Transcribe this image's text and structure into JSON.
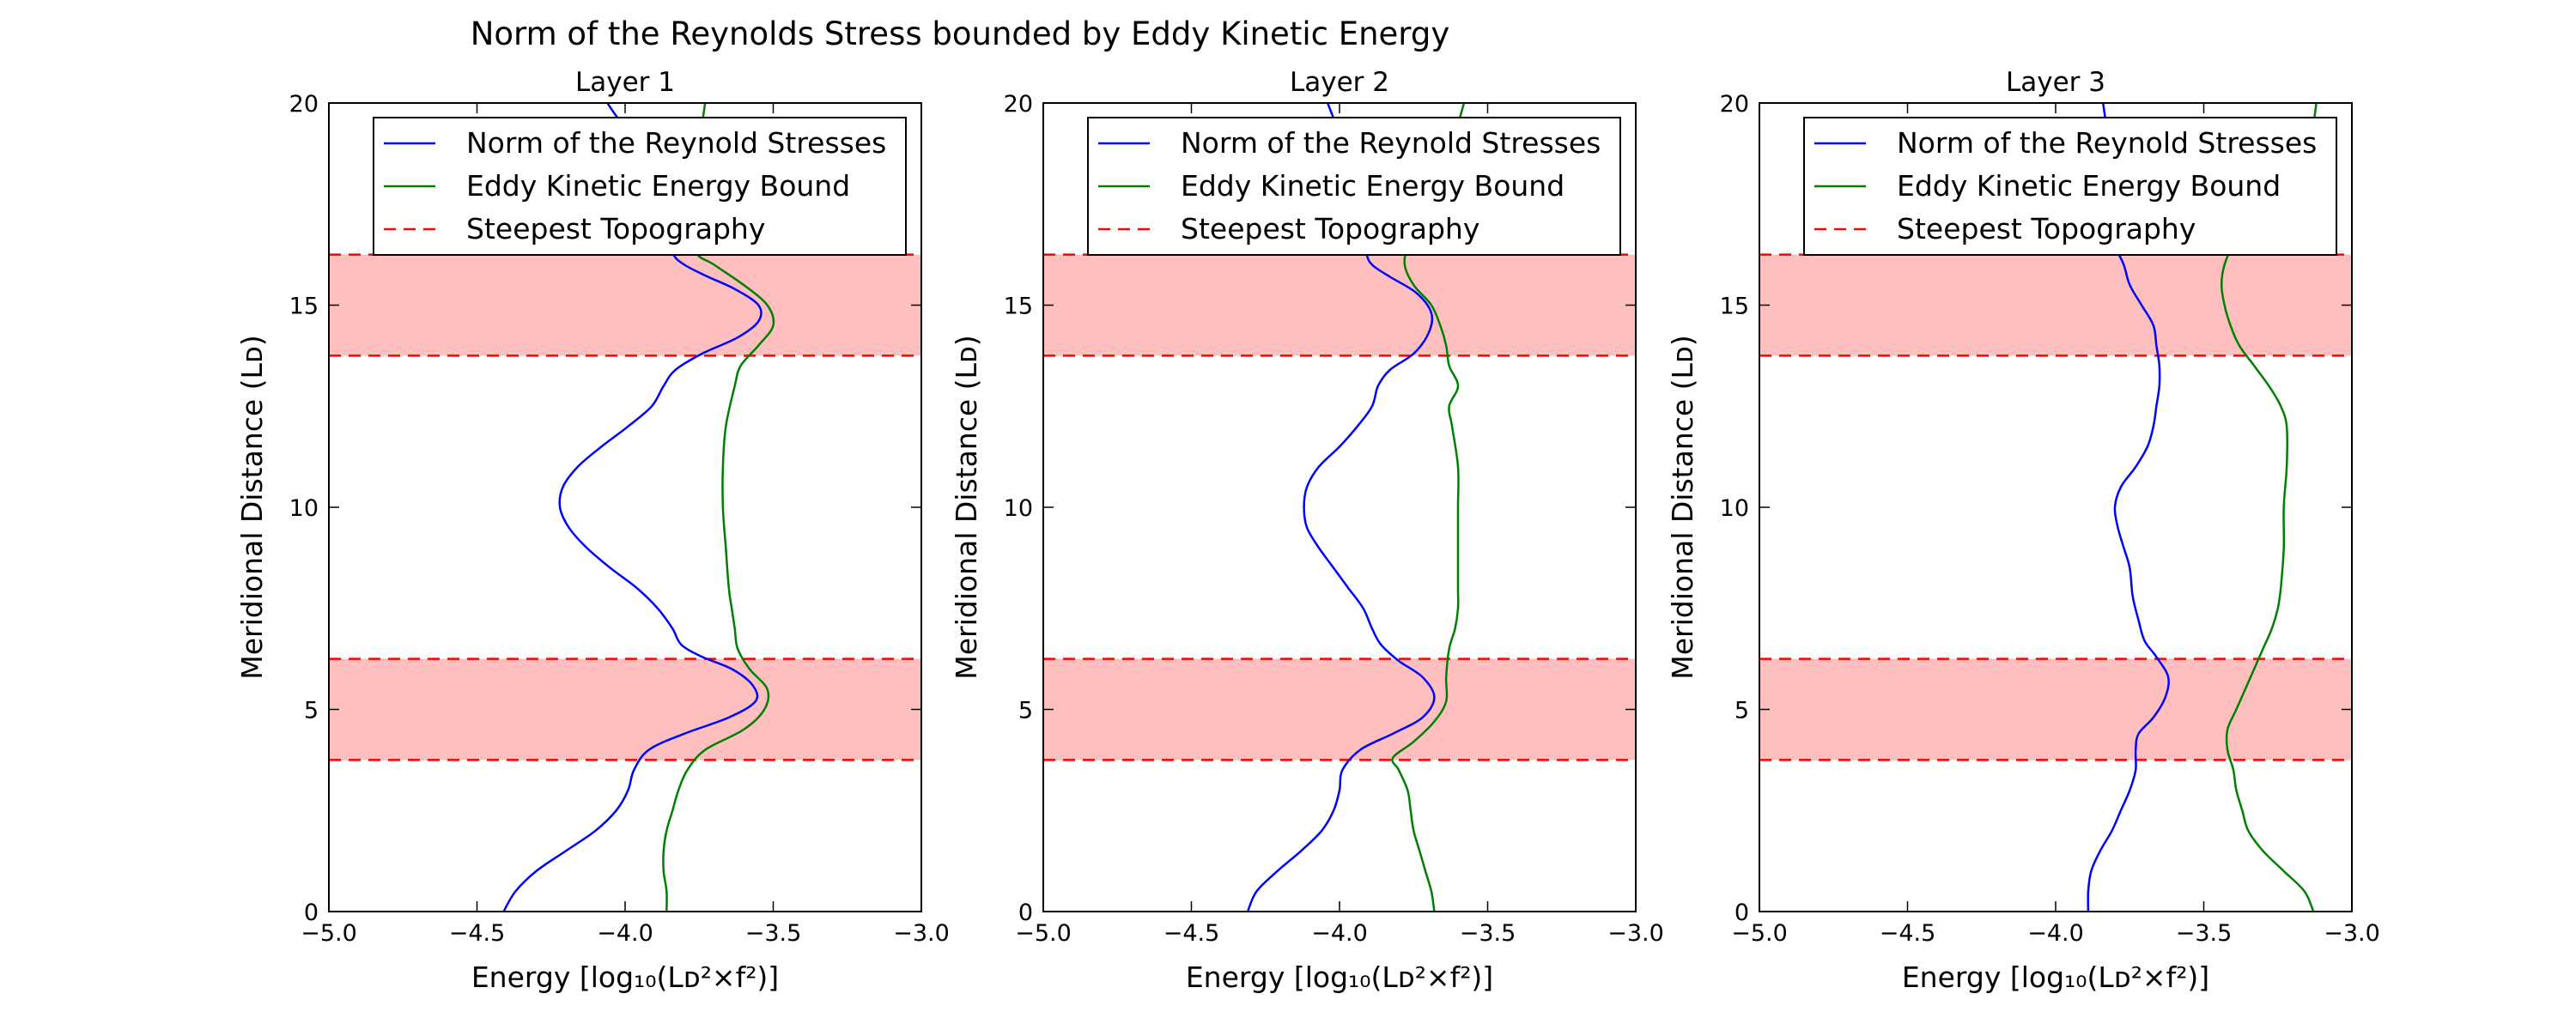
{
  "suptitle": "Norm of the Reynolds Stress bounded by Eddy Kinetic Energy",
  "colors": {
    "reynolds": "#0000ff",
    "eke": "#008000",
    "topo_line": "#ff0000",
    "topo_band": "#ffbfbf"
  },
  "chart_data": [
    {
      "type": "line",
      "title": "Layer 1",
      "xlabel": "Energy [log₁₀(Lᴅ²×f²)]",
      "ylabel": "Meridional Distance (Lᴅ)",
      "xlim": [
        -5.0,
        -3.0
      ],
      "ylim": [
        0,
        20
      ],
      "xticks": [
        -5.0,
        -4.5,
        -4.0,
        -3.5,
        -3.0
      ],
      "xtick_labels": [
        "−5.0",
        "−4.5",
        "−4.0",
        "−3.5",
        "−3.0"
      ],
      "yticks": [
        0,
        5,
        10,
        15,
        20
      ],
      "ytick_labels": [
        "0",
        "5",
        "10",
        "15",
        "20"
      ],
      "legend": {
        "position": "top-right",
        "entries": [
          "Norm of the Reynold Stresses",
          "Eddy Kinetic Energy Bound",
          "Steepest Topography"
        ]
      },
      "bands": [
        [
          3.75,
          6.25
        ],
        [
          13.75,
          16.25
        ]
      ],
      "series": [
        {
          "name": "Norm of the Reynold Stresses",
          "points": [
            [
              -4.41,
              0
            ],
            [
              -4.37,
              0.5
            ],
            [
              -4.3,
              1
            ],
            [
              -4.2,
              1.5
            ],
            [
              -4.1,
              2
            ],
            [
              -4.03,
              2.5
            ],
            [
              -3.99,
              3
            ],
            [
              -3.97,
              3.5
            ],
            [
              -3.92,
              4
            ],
            [
              -3.8,
              4.4
            ],
            [
              -3.65,
              4.8
            ],
            [
              -3.56,
              5.2
            ],
            [
              -3.57,
              5.6
            ],
            [
              -3.64,
              6
            ],
            [
              -3.74,
              6.3
            ],
            [
              -3.81,
              6.6
            ],
            [
              -3.84,
              7
            ],
            [
              -3.89,
              7.5
            ],
            [
              -3.96,
              8
            ],
            [
              -4.05,
              8.5
            ],
            [
              -4.13,
              9
            ],
            [
              -4.19,
              9.5
            ],
            [
              -4.22,
              10
            ],
            [
              -4.21,
              10.5
            ],
            [
              -4.16,
              11
            ],
            [
              -4.08,
              11.5
            ],
            [
              -3.99,
              12
            ],
            [
              -3.91,
              12.5
            ],
            [
              -3.87,
              13
            ],
            [
              -3.83,
              13.4
            ],
            [
              -3.74,
              13.8
            ],
            [
              -3.62,
              14.2
            ],
            [
              -3.55,
              14.6
            ],
            [
              -3.55,
              15
            ],
            [
              -3.63,
              15.4
            ],
            [
              -3.72,
              15.7
            ],
            [
              -3.8,
              16
            ],
            [
              -3.84,
              16.3
            ],
            [
              -3.86,
              17
            ],
            [
              -3.88,
              18
            ],
            [
              -3.93,
              19
            ],
            [
              -4.01,
              19.5
            ],
            [
              -4.06,
              20
            ]
          ]
        },
        {
          "name": "Eddy Kinetic Energy Bound",
          "points": [
            [
              -3.86,
              0
            ],
            [
              -3.86,
              0.5
            ],
            [
              -3.87,
              1
            ],
            [
              -3.87,
              1.5
            ],
            [
              -3.86,
              2
            ],
            [
              -3.84,
              2.5
            ],
            [
              -3.82,
              3
            ],
            [
              -3.79,
              3.5
            ],
            [
              -3.73,
              4
            ],
            [
              -3.6,
              4.5
            ],
            [
              -3.53,
              5
            ],
            [
              -3.52,
              5.5
            ],
            [
              -3.58,
              6
            ],
            [
              -3.62,
              6.5
            ],
            [
              -3.63,
              7
            ],
            [
              -3.64,
              7.5
            ],
            [
              -3.65,
              8
            ],
            [
              -3.66,
              9
            ],
            [
              -3.67,
              10
            ],
            [
              -3.67,
              11
            ],
            [
              -3.66,
              12
            ],
            [
              -3.63,
              13
            ],
            [
              -3.61,
              13.5
            ],
            [
              -3.55,
              14
            ],
            [
              -3.5,
              14.5
            ],
            [
              -3.52,
              15
            ],
            [
              -3.6,
              15.5
            ],
            [
              -3.7,
              16
            ],
            [
              -3.76,
              16.3
            ],
            [
              -3.77,
              17
            ],
            [
              -3.77,
              18
            ],
            [
              -3.75,
              19
            ],
            [
              -3.73,
              20
            ]
          ]
        }
      ]
    },
    {
      "type": "line",
      "title": "Layer 2",
      "xlabel": "Energy [log₁₀(Lᴅ²×f²)]",
      "ylabel": "Meridional Distance (Lᴅ)",
      "xlim": [
        -5.0,
        -3.0
      ],
      "ylim": [
        0,
        20
      ],
      "xticks": [
        -5.0,
        -4.5,
        -4.0,
        -3.5,
        -3.0
      ],
      "xtick_labels": [
        "−5.0",
        "−4.5",
        "−4.0",
        "−3.5",
        "−3.0"
      ],
      "yticks": [
        0,
        5,
        10,
        15,
        20
      ],
      "ytick_labels": [
        "0",
        "5",
        "10",
        "15",
        "20"
      ],
      "legend": {
        "position": "top-right",
        "entries": [
          "Norm of the Reynold Stresses",
          "Eddy Kinetic Energy Bound",
          "Steepest Topography"
        ]
      },
      "bands": [
        [
          3.75,
          6.25
        ],
        [
          13.75,
          16.25
        ]
      ],
      "series": [
        {
          "name": "Norm of the Reynold Stresses",
          "points": [
            [
              -4.31,
              0
            ],
            [
              -4.28,
              0.5
            ],
            [
              -4.21,
              1
            ],
            [
              -4.13,
              1.5
            ],
            [
              -4.06,
              2
            ],
            [
              -4.02,
              2.5
            ],
            [
              -4.0,
              3
            ],
            [
              -3.99,
              3.5
            ],
            [
              -3.93,
              4
            ],
            [
              -3.82,
              4.4
            ],
            [
              -3.72,
              4.8
            ],
            [
              -3.68,
              5.3
            ],
            [
              -3.72,
              5.8
            ],
            [
              -3.8,
              6.2
            ],
            [
              -3.86,
              6.6
            ],
            [
              -3.89,
              7
            ],
            [
              -3.92,
              7.5
            ],
            [
              -3.97,
              8
            ],
            [
              -4.02,
              8.5
            ],
            [
              -4.07,
              9
            ],
            [
              -4.11,
              9.5
            ],
            [
              -4.12,
              10
            ],
            [
              -4.11,
              10.5
            ],
            [
              -4.07,
              11
            ],
            [
              -4.0,
              11.5
            ],
            [
              -3.94,
              12
            ],
            [
              -3.89,
              12.5
            ],
            [
              -3.87,
              13
            ],
            [
              -3.83,
              13.4
            ],
            [
              -3.75,
              13.8
            ],
            [
              -3.7,
              14.3
            ],
            [
              -3.69,
              14.8
            ],
            [
              -3.74,
              15.3
            ],
            [
              -3.83,
              15.7
            ],
            [
              -3.89,
              16
            ],
            [
              -3.91,
              16.3
            ],
            [
              -3.93,
              17
            ],
            [
              -3.96,
              18
            ],
            [
              -3.99,
              19
            ],
            [
              -4.04,
              20
            ]
          ]
        },
        {
          "name": "Eddy Kinetic Energy Bound",
          "points": [
            [
              -3.68,
              0
            ],
            [
              -3.69,
              0.5
            ],
            [
              -3.71,
              1
            ],
            [
              -3.73,
              1.5
            ],
            [
              -3.75,
              2
            ],
            [
              -3.76,
              2.5
            ],
            [
              -3.77,
              3
            ],
            [
              -3.8,
              3.5
            ],
            [
              -3.82,
              3.8
            ],
            [
              -3.75,
              4.2
            ],
            [
              -3.68,
              4.7
            ],
            [
              -3.64,
              5.2
            ],
            [
              -3.64,
              5.8
            ],
            [
              -3.63,
              6.5
            ],
            [
              -3.61,
              7
            ],
            [
              -3.6,
              7.5
            ],
            [
              -3.6,
              8
            ],
            [
              -3.6,
              9
            ],
            [
              -3.6,
              10
            ],
            [
              -3.6,
              11
            ],
            [
              -3.62,
              12
            ],
            [
              -3.63,
              12.5
            ],
            [
              -3.6,
              13
            ],
            [
              -3.63,
              13.5
            ],
            [
              -3.64,
              14
            ],
            [
              -3.66,
              14.5
            ],
            [
              -3.69,
              15
            ],
            [
              -3.75,
              15.5
            ],
            [
              -3.78,
              16
            ],
            [
              -3.77,
              16.5
            ],
            [
              -3.75,
              17
            ],
            [
              -3.73,
              17.5
            ],
            [
              -3.7,
              18
            ],
            [
              -3.67,
              18.5
            ],
            [
              -3.63,
              19
            ],
            [
              -3.6,
              19.5
            ],
            [
              -3.58,
              20
            ]
          ]
        }
      ]
    },
    {
      "type": "line",
      "title": "Layer 3",
      "xlabel": "Energy [log₁₀(Lᴅ²×f²)]",
      "ylabel": "Meridional Distance (Lᴅ)",
      "xlim": [
        -5.0,
        -3.0
      ],
      "ylim": [
        0,
        20
      ],
      "xticks": [
        -5.0,
        -4.5,
        -4.0,
        -3.5,
        -3.0
      ],
      "xtick_labels": [
        "−5.0",
        "−4.5",
        "−4.0",
        "−3.5",
        "−3.0"
      ],
      "yticks": [
        0,
        5,
        10,
        15,
        20
      ],
      "ytick_labels": [
        "0",
        "5",
        "10",
        "15",
        "20"
      ],
      "legend": {
        "position": "top-right",
        "entries": [
          "Norm of the Reynold Stresses",
          "Eddy Kinetic Energy Bound",
          "Steepest Topography"
        ]
      },
      "bands": [
        [
          3.75,
          6.25
        ],
        [
          13.75,
          16.25
        ]
      ],
      "series": [
        {
          "name": "Norm of the Reynold Stresses",
          "points": [
            [
              -3.89,
              0
            ],
            [
              -3.89,
              0.5
            ],
            [
              -3.88,
              1
            ],
            [
              -3.85,
              1.5
            ],
            [
              -3.81,
              2
            ],
            [
              -3.78,
              2.5
            ],
            [
              -3.75,
              3
            ],
            [
              -3.73,
              3.5
            ],
            [
              -3.73,
              4
            ],
            [
              -3.72,
              4.4
            ],
            [
              -3.67,
              4.8
            ],
            [
              -3.63,
              5.3
            ],
            [
              -3.62,
              5.8
            ],
            [
              -3.66,
              6.3
            ],
            [
              -3.7,
              6.7
            ],
            [
              -3.72,
              7.2
            ],
            [
              -3.74,
              7.8
            ],
            [
              -3.75,
              8.5
            ],
            [
              -3.77,
              9
            ],
            [
              -3.79,
              9.5
            ],
            [
              -3.8,
              10
            ],
            [
              -3.78,
              10.5
            ],
            [
              -3.73,
              11
            ],
            [
              -3.69,
              11.5
            ],
            [
              -3.67,
              12
            ],
            [
              -3.66,
              12.5
            ],
            [
              -3.65,
              13
            ],
            [
              -3.65,
              13.5
            ],
            [
              -3.66,
              14
            ],
            [
              -3.67,
              14.5
            ],
            [
              -3.71,
              15
            ],
            [
              -3.75,
              15.5
            ],
            [
              -3.77,
              16
            ],
            [
              -3.8,
              16.5
            ],
            [
              -3.8,
              17
            ],
            [
              -3.8,
              18
            ],
            [
              -3.82,
              19
            ],
            [
              -3.84,
              20
            ]
          ]
        },
        {
          "name": "Eddy Kinetic Energy Bound",
          "points": [
            [
              -3.13,
              0
            ],
            [
              -3.16,
              0.5
            ],
            [
              -3.23,
              1
            ],
            [
              -3.3,
              1.5
            ],
            [
              -3.35,
              2
            ],
            [
              -3.37,
              2.5
            ],
            [
              -3.39,
              3
            ],
            [
              -3.4,
              3.5
            ],
            [
              -3.42,
              4
            ],
            [
              -3.42,
              4.5
            ],
            [
              -3.39,
              5
            ],
            [
              -3.36,
              5.5
            ],
            [
              -3.33,
              6
            ],
            [
              -3.3,
              6.5
            ],
            [
              -3.27,
              7
            ],
            [
              -3.25,
              7.5
            ],
            [
              -3.24,
              8
            ],
            [
              -3.23,
              9
            ],
            [
              -3.23,
              10
            ],
            [
              -3.22,
              11
            ],
            [
              -3.22,
              12
            ],
            [
              -3.24,
              12.5
            ],
            [
              -3.28,
              13
            ],
            [
              -3.33,
              13.5
            ],
            [
              -3.38,
              14
            ],
            [
              -3.41,
              14.5
            ],
            [
              -3.43,
              15
            ],
            [
              -3.44,
              15.5
            ],
            [
              -3.43,
              16
            ],
            [
              -3.4,
              16.5
            ],
            [
              -3.35,
              17
            ],
            [
              -3.28,
              17.5
            ],
            [
              -3.22,
              18
            ],
            [
              -3.18,
              18.5
            ],
            [
              -3.15,
              19
            ],
            [
              -3.13,
              19.5
            ],
            [
              -3.12,
              20
            ]
          ]
        }
      ]
    }
  ]
}
